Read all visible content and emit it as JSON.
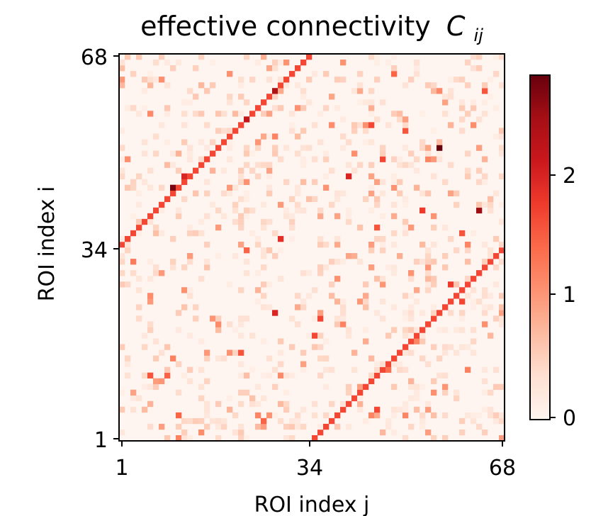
{
  "chart_data": {
    "type": "heatmap",
    "title": "effective connectivity",
    "title_symbol": "C",
    "title_subscript": "ij",
    "xlabel": "ROI index j",
    "ylabel": "ROI index i",
    "x_range": [
      1,
      68
    ],
    "y_range": [
      1,
      68
    ],
    "x_ticks": [
      "1",
      "34",
      "68"
    ],
    "y_ticks": [
      "1",
      "34",
      "68"
    ],
    "colormap": "Reds",
    "colorbar": {
      "range": [
        0,
        2.7
      ],
      "ticks": [
        "0",
        "1",
        "2"
      ],
      "tick_values": [
        0,
        1,
        2
      ]
    },
    "grid": false,
    "n": 68,
    "structure": "two bands of strong connections: i - j = 34 and j - i = 34; sparse weaker off-diagonal entries",
    "diagonal_bands": [
      {
        "offset": 34,
        "value": 1.6,
        "description": "i = j + 34 (upper-left band)"
      },
      {
        "offset": -34,
        "value": 1.6,
        "description": "j = i + 34 (lower-right band)"
      }
    ],
    "notable_cells": [
      {
        "i": 45,
        "j": 10,
        "value": 2.6
      },
      {
        "i": 47,
        "j": 12,
        "value": 1.9
      },
      {
        "i": 57,
        "j": 23,
        "value": 2.1
      },
      {
        "i": 62,
        "j": 28,
        "value": 2.3
      },
      {
        "i": 52,
        "j": 57,
        "value": 2.7
      },
      {
        "i": 41,
        "j": 64,
        "value": 2.4
      },
      {
        "i": 47,
        "j": 41,
        "value": 1.9
      },
      {
        "i": 36,
        "j": 29,
        "value": 1.8
      },
      {
        "i": 22,
        "j": 36,
        "value": 1.6
      },
      {
        "i": 19,
        "j": 35,
        "value": 1.6
      },
      {
        "i": 23,
        "j": 28,
        "value": 1.9
      },
      {
        "i": 16,
        "j": 22,
        "value": 1.5
      },
      {
        "i": 50,
        "j": 47,
        "value": 1.6
      },
      {
        "i": 38,
        "j": 46,
        "value": 1.5
      },
      {
        "i": 6,
        "j": 46,
        "value": 1.6
      },
      {
        "i": 13,
        "j": 48,
        "value": 1.3
      },
      {
        "i": 28,
        "j": 59,
        "value": 1.7
      },
      {
        "i": 25,
        "j": 61,
        "value": 1.6
      },
      {
        "i": 12,
        "j": 6,
        "value": 1.5
      },
      {
        "i": 12,
        "j": 9,
        "value": 1.4
      },
      {
        "i": 5,
        "j": 11,
        "value": 1.4
      },
      {
        "i": 4,
        "j": 26,
        "value": 1.4
      },
      {
        "i": 56,
        "j": 45,
        "value": 1.6
      },
      {
        "i": 41,
        "j": 54,
        "value": 1.7
      },
      {
        "i": 37,
        "j": 61,
        "value": 1.5
      },
      {
        "i": 32,
        "j": 3,
        "value": 1.2
      },
      {
        "i": 34,
        "j": 23,
        "value": 1.4
      },
      {
        "i": 62,
        "j": 65,
        "value": 1.5
      },
      {
        "i": 65,
        "j": 49,
        "value": 1.4
      },
      {
        "i": 55,
        "j": 51,
        "value": 1.5
      }
    ]
  }
}
